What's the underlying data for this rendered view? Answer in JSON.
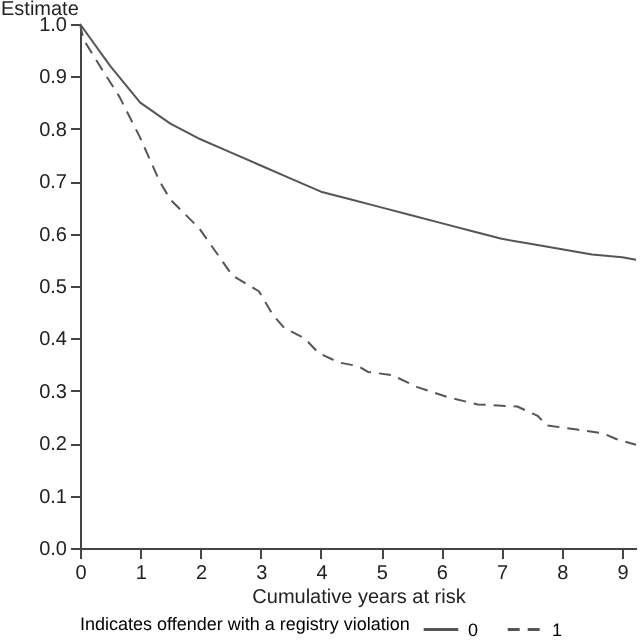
{
  "chart_data": {
    "type": "line",
    "xlabel": "Cumulative years at risk",
    "ylabel": "Estimate",
    "legend_title": "Indicates offender with a registry violation",
    "legend": "bottom",
    "grid": false,
    "xlim": [
      0,
      9.23
    ],
    "xticks": [
      0,
      1,
      2,
      3,
      4,
      5,
      6,
      7,
      8,
      9
    ],
    "ylim": [
      0,
      1
    ],
    "yticks": [
      {
        "value": 0,
        "label": "0.0"
      },
      0.1,
      0.2,
      0.3,
      0.4,
      0.5,
      0.6,
      0.7,
      0.8,
      0.9,
      {
        "value": 1,
        "label": "1.0"
      }
    ],
    "series": [
      {
        "name": "0",
        "color": "#555555",
        "line_style": "solid",
        "x": [
          0,
          0.5,
          1,
          1.5,
          2,
          2.5,
          3,
          3.5,
          4,
          4.5,
          5,
          5.5,
          6,
          6.5,
          7,
          7.5,
          8,
          8.5,
          9,
          9.23
        ],
        "values": [
          1,
          0.92,
          0.85,
          0.81,
          0.78,
          0.755,
          0.73,
          0.705,
          0.68,
          0.665,
          0.65,
          0.635,
          0.62,
          0.605,
          0.59,
          0.58,
          0.57,
          0.56,
          0.555,
          0.55
        ]
      },
      {
        "name": "1",
        "color": "#555555",
        "line_style": "dashed",
        "x": [
          0,
          0.06,
          0.33,
          0.66,
          0.99,
          1.32,
          1.5,
          1.98,
          2.53,
          2.97,
          3.2,
          3.39,
          3.73,
          3.96,
          4.3,
          4.62,
          4.78,
          5.18,
          5.6,
          6.1,
          6.6,
          7.26,
          7.6,
          7.75,
          8.25,
          8.68,
          8.9,
          9.23
        ],
        "values": [
          1,
          0.97,
          0.92,
          0.86,
          0.785,
          0.7,
          0.665,
          0.61,
          0.52,
          0.49,
          0.445,
          0.42,
          0.4,
          0.372,
          0.354,
          0.347,
          0.336,
          0.33,
          0.307,
          0.288,
          0.274,
          0.27,
          0.252,
          0.234,
          0.226,
          0.219,
          0.208,
          0.197
        ]
      }
    ]
  }
}
